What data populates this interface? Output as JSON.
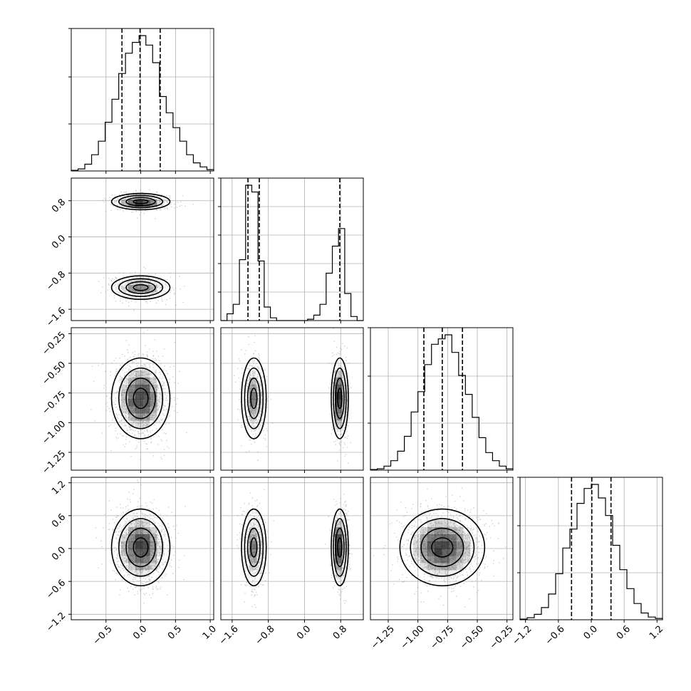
{
  "chart_data": {
    "type": "corner",
    "n_params": 4,
    "grid": true,
    "params": [
      {
        "range": [
          -1.0,
          1.05
        ],
        "ticks": [
          "−0.5",
          "0.0",
          "0.5",
          "1.0"
        ],
        "tick_values": [
          -0.5,
          0.0,
          0.5,
          1.0
        ],
        "quantiles": [
          -0.27,
          -0.01,
          0.28
        ],
        "hist_max": 1.0,
        "hist_ticks": [
          0.33,
          0.66,
          1.0
        ],
        "hist_y": [
          0.005,
          0.015,
          0.05,
          0.12,
          0.22,
          0.36,
          0.53,
          0.72,
          0.87,
          0.95,
          1.0,
          0.93,
          0.8,
          0.55,
          0.43,
          0.32,
          0.22,
          0.12,
          0.06,
          0.03,
          0.01
        ]
      },
      {
        "range": [
          -1.85,
          1.3
        ],
        "ticks": [
          "−1.6",
          "−0.8",
          "0.0",
          "0.8"
        ],
        "tick_values": [
          -1.6,
          -0.8,
          0.0,
          0.8
        ],
        "quantiles": [
          -1.25,
          -1.0,
          0.78
        ],
        "hist_max": 1.0,
        "hist_ticks": [
          0.2,
          0.4,
          0.6,
          0.8,
          1.0
        ],
        "hist_y": [
          0.0,
          0.05,
          0.12,
          0.45,
          1.0,
          0.95,
          0.44,
          0.1,
          0.02,
          0.0,
          0.0,
          0.0,
          0.0,
          0.0,
          0.01,
          0.04,
          0.12,
          0.35,
          0.55,
          0.68,
          0.2,
          0.03,
          0.0
        ]
      },
      {
        "range": [
          -1.4,
          -0.2
        ],
        "ticks": [
          "−1.25",
          "−1.00",
          "−0.75",
          "−0.50",
          "−0.25"
        ],
        "tick_values": [
          -1.25,
          -1.0,
          -0.75,
          -0.5,
          -0.25
        ],
        "quantiles": [
          -0.95,
          -0.795,
          -0.625
        ],
        "hist_max": 1.0,
        "hist_ticks": [
          0.33,
          0.66,
          1.0
        ],
        "hist_y": [
          0.005,
          0.01,
          0.03,
          0.07,
          0.14,
          0.25,
          0.43,
          0.58,
          0.78,
          0.93,
          0.97,
          1.0,
          0.87,
          0.7,
          0.56,
          0.39,
          0.24,
          0.13,
          0.07,
          0.03,
          0.01
        ]
      },
      {
        "range": [
          -1.3,
          1.3
        ],
        "ticks": [
          "−1.2",
          "−0.6",
          "0.0",
          "0.6",
          "1.2"
        ],
        "tick_values": [
          -1.2,
          -0.6,
          0.0,
          0.6,
          1.2
        ],
        "quantiles": [
          -0.36,
          0.01,
          0.36
        ],
        "hist_max": 1.0,
        "hist_ticks": [
          0.33,
          0.66,
          1.0
        ],
        "hist_y": [
          0.005,
          0.015,
          0.04,
          0.09,
          0.19,
          0.34,
          0.53,
          0.67,
          0.86,
          0.97,
          1.0,
          0.9,
          0.77,
          0.55,
          0.37,
          0.23,
          0.12,
          0.05,
          0.02,
          0.01
        ]
      }
    ],
    "distributions": [
      {
        "modes": [
          {
            "mean": 0.0,
            "sd": 0.2,
            "w": 1.0
          }
        ]
      },
      {
        "modes": [
          {
            "mean": -1.12,
            "sd": 0.13,
            "w": 0.5
          },
          {
            "mean": 0.78,
            "sd": 0.09,
            "w": 0.5
          }
        ]
      },
      {
        "modes": [
          {
            "mean": -0.795,
            "sd": 0.17,
            "w": 1.0
          }
        ]
      },
      {
        "modes": [
          {
            "mean": 0.02,
            "sd": 0.35,
            "w": 1.0
          }
        ]
      }
    ],
    "colors": {
      "line": "#000000",
      "points": "#999999",
      "grid": "#b0b0b0",
      "density": "#000000"
    }
  }
}
